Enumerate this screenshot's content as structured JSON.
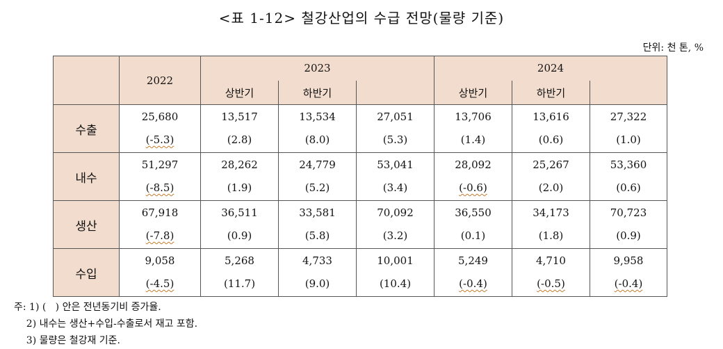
{
  "title": "<표 1-12> 철강산업의 수급 전망(물량 기준)",
  "unit": "단위: 천 톤, %",
  "header": {
    "year2022": "2022",
    "year2023": "2023",
    "year2024": "2024",
    "h1_2023": "상반기",
    "h2_2023": "하반기",
    "h1_2024": "상반기",
    "h2_2024": "하반기"
  },
  "rows": [
    {
      "label": "수출",
      "vals": [
        [
          "25,680",
          "(-5.3)"
        ],
        [
          "13,517",
          "(2.8)"
        ],
        [
          "13,534",
          "(8.0)"
        ],
        [
          "27,051",
          "(5.3)"
        ],
        [
          "13,706",
          "(1.4)"
        ],
        [
          "13,616",
          "(0.6)"
        ],
        [
          "27,322",
          "(1.0)"
        ]
      ]
    },
    {
      "label": "내수",
      "vals": [
        [
          "51,297",
          "(-8.5)"
        ],
        [
          "28,262",
          "(1.9)"
        ],
        [
          "24,779",
          "(5.2)"
        ],
        [
          "53,041",
          "(3.4)"
        ],
        [
          "28,092",
          "(-0.6)"
        ],
        [
          "25,267",
          "(2.0)"
        ],
        [
          "53,360",
          "(0.6)"
        ]
      ]
    },
    {
      "label": "생산",
      "vals": [
        [
          "67,918",
          "(-7.8)"
        ],
        [
          "36,511",
          "(0.9)"
        ],
        [
          "33,581",
          "(5.8)"
        ],
        [
          "70,092",
          "(3.2)"
        ],
        [
          "36,550",
          "(0.1)"
        ],
        [
          "34,173",
          "(1.8)"
        ],
        [
          "70,723",
          "(0.9)"
        ]
      ]
    },
    {
      "label": "수입",
      "vals": [
        [
          "9,058",
          "(-4.5)"
        ],
        [
          "5,268",
          "(11.7)"
        ],
        [
          "4,733",
          "(9.0)"
        ],
        [
          "10,001",
          "(10.4)"
        ],
        [
          "5,249",
          "(-0.4)"
        ],
        [
          "4,710",
          "(-0.5)"
        ],
        [
          "9,958",
          "(-0.4)"
        ]
      ]
    }
  ],
  "notes": [
    "주: 1) (   ) 안은 전년동기비 증가율.",
    "    2) 내수는 생산+수입-수출로서 재고 포함.",
    "    3) 물량은 철강재 기준."
  ]
}
